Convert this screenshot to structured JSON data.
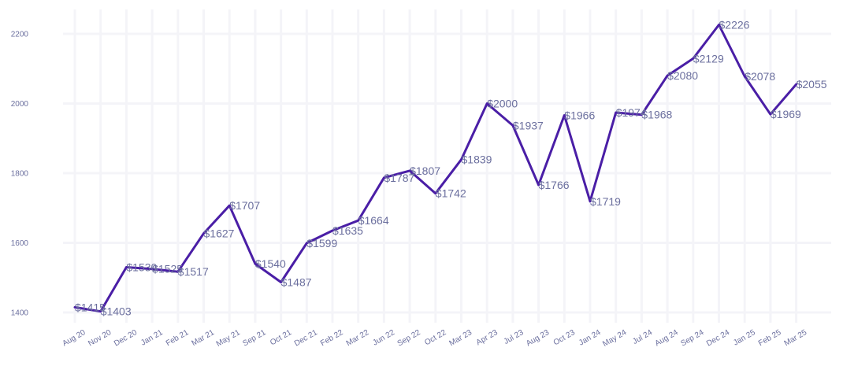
{
  "chart_data": {
    "type": "line",
    "categories": [
      "Aug 20",
      "Nov 20",
      "Dec 20",
      "Jan 21",
      "Feb 21",
      "Mar 21",
      "May 21",
      "Sep 21",
      "Oct 21",
      "Dec 21",
      "Feb 22",
      "Mar 22",
      "Jun 22",
      "Sep 22",
      "Oct 22",
      "Mar 23",
      "Apr 23",
      "Jul 23",
      "Aug 23",
      "Oct 23",
      "Jan 24",
      "May 24",
      "Jul 24",
      "Aug 24",
      "Sep 24",
      "Dec 24",
      "Jan 25",
      "Feb 25",
      "Mar 25"
    ],
    "values": [
      1415,
      1403,
      1530,
      1525,
      1517,
      1627,
      1707,
      1540,
      1487,
      1599,
      1635,
      1664,
      1787,
      1807,
      1742,
      1839,
      2000,
      1937,
      1766,
      1966,
      1719,
      1974,
      1968,
      2080,
      2129,
      2226,
      2078,
      1969,
      2055
    ],
    "data_labels": [
      "$1415",
      "$1403",
      "$1530",
      "$1525",
      "$1517",
      "$1627",
      "$1707",
      "$1540",
      "$1487",
      "$1599",
      "$1635",
      "$1664",
      "$1787",
      "$1807",
      "$1742",
      "$1839",
      "$2000",
      "$1937",
      "$1766",
      "$1966",
      "$1719",
      "$1974",
      "$1968",
      "$2080",
      "$2129",
      "$2226",
      "$2078",
      "$1969",
      "$2055"
    ],
    "y_ticks": [
      1400,
      1600,
      1800,
      2000,
      2200
    ],
    "ylim": [
      1380,
      2250
    ],
    "grid": true,
    "line_color": "#4a1ea6",
    "label_color": "#6b6f9e",
    "title": "",
    "xlabel": "",
    "ylabel": ""
  }
}
